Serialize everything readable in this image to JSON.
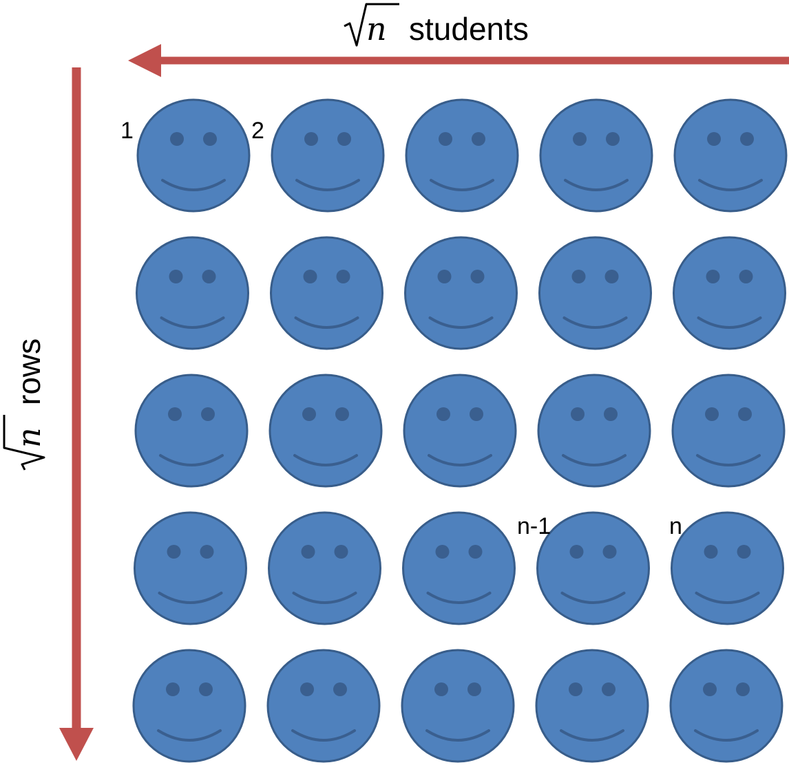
{
  "top_axis": {
    "symbol": "n",
    "label": "students",
    "color": "#c0504d"
  },
  "left_axis": {
    "symbol": "n",
    "label": "rows",
    "color": "#c0504d"
  },
  "grid": {
    "rows": 5,
    "columns": 5,
    "face_fill": "#4f81bd",
    "face_stroke": "#385d8a",
    "feature_color": "#3a5f8f",
    "icon": "smiley-face-icon"
  },
  "seat_labels": [
    {
      "text": "1",
      "row": 0,
      "col": 0
    },
    {
      "text": "2",
      "row": 0,
      "col": 1
    },
    {
      "text": "n-1",
      "row": 4,
      "col": 3
    },
    {
      "text": "n",
      "row": 4,
      "col": 4
    }
  ]
}
